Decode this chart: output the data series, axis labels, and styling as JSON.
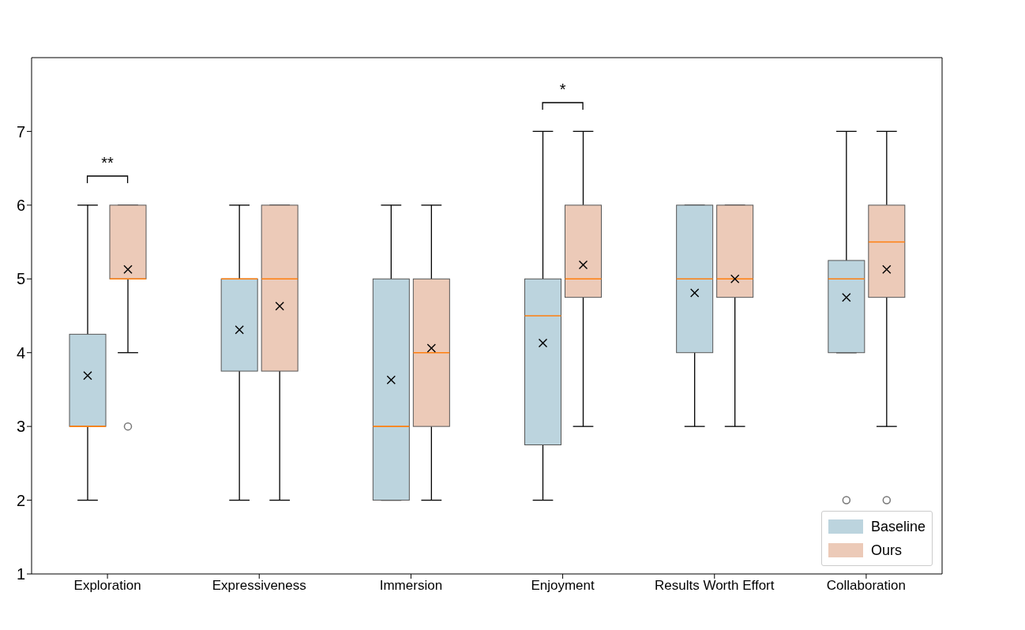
{
  "chart_data": {
    "type": "box",
    "categories": [
      "Exploration",
      "Expressiveness",
      "Immersion",
      "Enjoyment",
      "Results Worth Effort",
      "Collaboration"
    ],
    "series": [
      {
        "name": "Baseline",
        "color": "#bcd4de",
        "boxes": [
          {
            "low": 2,
            "q1": 3,
            "median": 3,
            "q3": 4.25,
            "high": 6,
            "mean": 3.69
          },
          {
            "low": 2,
            "q1": 3.75,
            "median": 5,
            "q3": 5,
            "high": 6,
            "mean": 4.31
          },
          {
            "low": 2,
            "q1": 2,
            "median": 3,
            "q3": 5,
            "high": 6,
            "mean": 3.63
          },
          {
            "low": 2,
            "q1": 2.75,
            "median": 4.5,
            "q3": 5,
            "high": 7,
            "mean": 4.13
          },
          {
            "low": 3,
            "q1": 4,
            "median": 5,
            "q3": 6,
            "high": 6,
            "mean": 4.81
          },
          {
            "low": 4,
            "q1": 4,
            "median": 5,
            "q3": 5.25,
            "high": 7,
            "mean": 4.75,
            "outliers": [
              2
            ]
          }
        ]
      },
      {
        "name": "Ours",
        "color": "#eccab8",
        "boxes": [
          {
            "low": 4,
            "q1": 5,
            "median": 5,
            "q3": 6,
            "high": 6,
            "mean": 5.13,
            "outliers": [
              3
            ]
          },
          {
            "low": 2,
            "q1": 3.75,
            "median": 5,
            "q3": 6,
            "high": 6,
            "mean": 4.63
          },
          {
            "low": 2,
            "q1": 3,
            "median": 4,
            "q3": 5,
            "high": 6,
            "mean": 4.06
          },
          {
            "low": 3,
            "q1": 4.75,
            "median": 5,
            "q3": 6,
            "high": 7,
            "mean": 5.19
          },
          {
            "low": 3,
            "q1": 4.75,
            "median": 5,
            "q3": 6,
            "high": 6,
            "mean": 5.0
          },
          {
            "low": 3,
            "q1": 4.75,
            "median": 5.5,
            "q3": 6,
            "high": 7,
            "mean": 5.13,
            "outliers": [
              2
            ]
          }
        ]
      }
    ],
    "ylim": [
      1,
      8
    ],
    "yticks": [
      1,
      2,
      3,
      4,
      5,
      6,
      7
    ],
    "annotations": [
      "**",
      "*"
    ],
    "legend": "bottom right"
  }
}
